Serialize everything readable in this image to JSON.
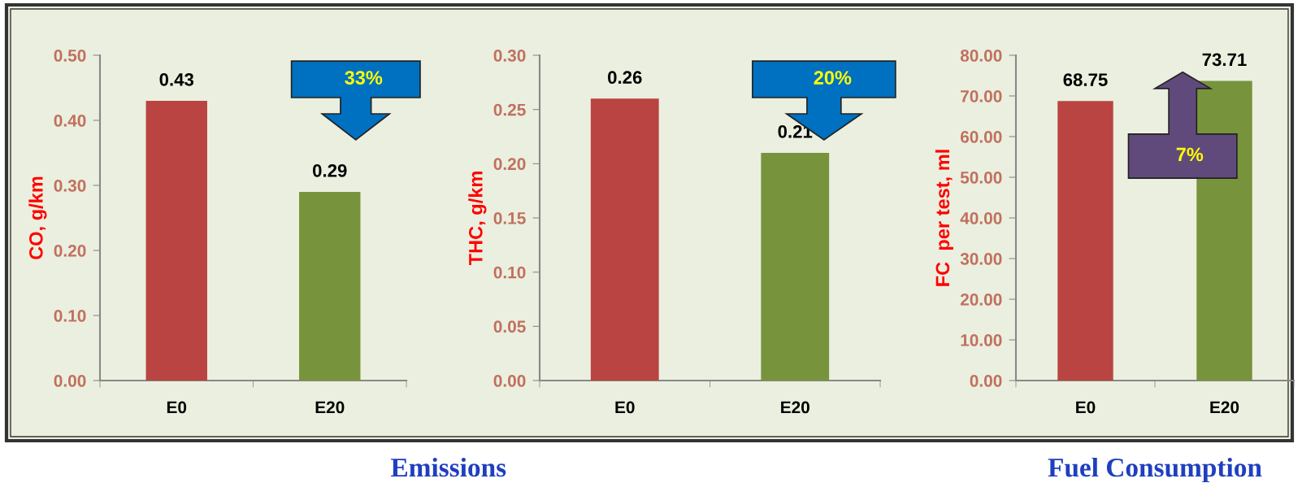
{
  "chart_data": [
    {
      "type": "bar",
      "ylabel": "CO, g/km",
      "categories": [
        "E0",
        "E20"
      ],
      "colors": [
        "#b94441",
        "#77933c"
      ],
      "values": [
        0.43,
        0.29
      ],
      "data_labels": true,
      "ylim": [
        0,
        0.5
      ],
      "yticks": [
        {
          "value": 0,
          "label": "0.00"
        },
        {
          "value": 0.1,
          "label": "0.10"
        },
        {
          "value": 0.2,
          "label": "0.20"
        },
        {
          "value": 0.3,
          "label": "0.30"
        },
        {
          "value": 0.4,
          "label": "0.40"
        },
        {
          "value": 0.5,
          "label": "0.50"
        }
      ],
      "annotations": [
        "33%",
        "Emissions"
      ]
    },
    {
      "type": "bar",
      "ylabel": "THC, g/km",
      "categories": [
        "E0",
        "E20"
      ],
      "colors": [
        "#b94441",
        "#77933c"
      ],
      "values": [
        0.26,
        0.21
      ],
      "data_labels": true,
      "ylim": [
        0,
        0.3
      ],
      "yticks": [
        {
          "value": 0,
          "label": "0.00"
        },
        {
          "value": 0.05,
          "label": "0.05"
        },
        {
          "value": 0.1,
          "label": "0.10"
        },
        {
          "value": 0.15,
          "label": "0.15"
        },
        {
          "value": 0.2,
          "label": "0.20"
        },
        {
          "value": 0.25,
          "label": "0.25"
        },
        {
          "value": 0.3,
          "label": "0.30"
        }
      ],
      "annotations": [
        "20%"
      ]
    },
    {
      "type": "bar",
      "ylabel": "FC  per test, ml",
      "categories": [
        "E0",
        "E20"
      ],
      "colors": [
        "#b94441",
        "#77933c"
      ],
      "values": [
        68.75,
        73.71
      ],
      "data_labels": true,
      "ylim": [
        0,
        80
      ],
      "yticks": [
        {
          "value": 0,
          "label": "0.00"
        },
        {
          "value": 10,
          "label": "10.00"
        },
        {
          "value": 20,
          "label": "20.00"
        },
        {
          "value": 30,
          "label": "30.00"
        },
        {
          "value": 40,
          "label": "40.00"
        },
        {
          "value": 50,
          "label": "50.00"
        },
        {
          "value": 60,
          "label": "60.00"
        },
        {
          "value": 70,
          "label": "70.00"
        },
        {
          "value": 80,
          "label": "80.00"
        }
      ],
      "annotations": [
        "7%",
        "Fuel Consumption"
      ]
    }
  ]
}
